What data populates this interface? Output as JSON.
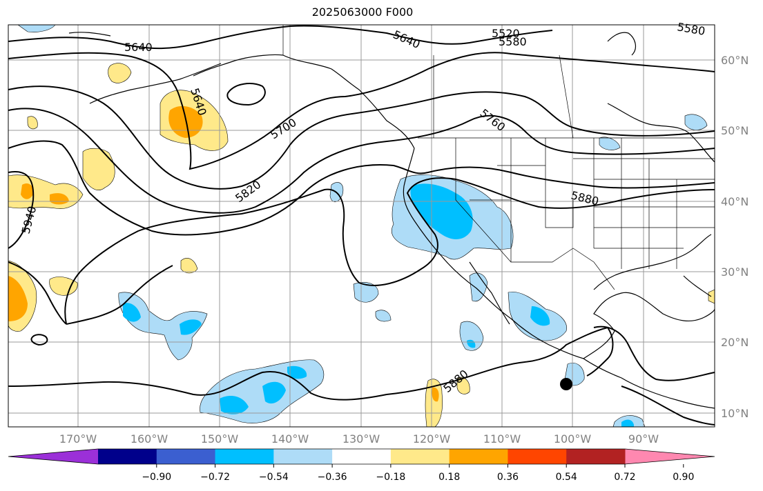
{
  "title": "2025063000 F000",
  "latitudes": [
    "60°N",
    "50°N",
    "40°N",
    "30°N",
    "20°N",
    "10°N"
  ],
  "longitudes": [
    "170°W",
    "160°W",
    "150°W",
    "140°W",
    "130°W",
    "120°W",
    "110°W",
    "100°W",
    "90°W"
  ],
  "contour_labels": [
    "5520",
    "5580",
    "5640",
    "5640",
    "5640",
    "5700",
    "5760",
    "5820",
    "5880",
    "5880",
    "5940",
    "5580"
  ],
  "colorbar": {
    "ticks": [
      "−0.90",
      "−0.72",
      "−0.54",
      "−0.36",
      "−0.18",
      "0.18",
      "0.36",
      "0.54",
      "0.72",
      "0.90"
    ],
    "colors": [
      "#9b30d8",
      "#00008b",
      "#3b5fd0",
      "#00bfff",
      "#aedcf7",
      "#ffffff",
      "#ffe98a",
      "#ffa500",
      "#ff4500",
      "#b22222",
      "#ff88b0"
    ]
  },
  "colors": {
    "grid": "#999999",
    "coast": "#000000",
    "axis_label": "#808080"
  }
}
